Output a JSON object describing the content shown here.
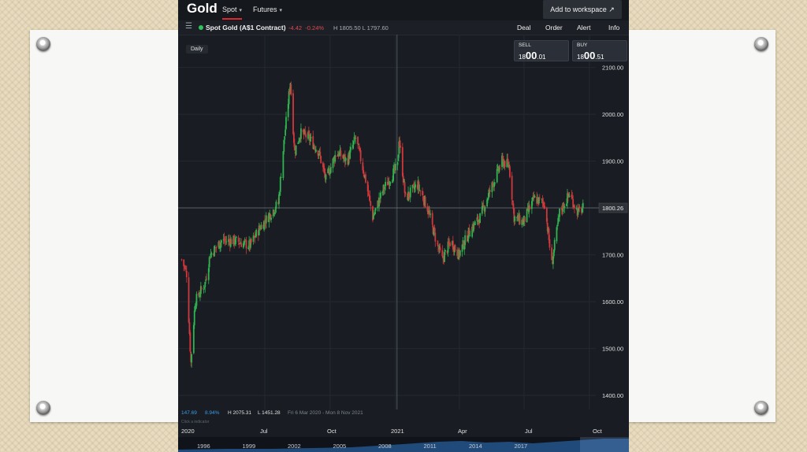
{
  "app": {
    "title": "Gold",
    "tabs": [
      {
        "label": "Spot",
        "caret": "▾"
      },
      {
        "label": "Futures",
        "caret": "▾"
      }
    ],
    "workspace_button": "Add to workspace",
    "workspace_icon": "↗"
  },
  "instrument": {
    "name": "Spot Gold (A$1 Contract)",
    "change": "-4.42",
    "change_pct": "-0.24%",
    "high_low": "H 1805.50  L 1797.60",
    "status_color": "#31c25a"
  },
  "toolbar": [
    "Deal",
    "Order",
    "Alert",
    "Info"
  ],
  "timeframe": "Daily",
  "quotes": {
    "sell": {
      "label": "SELL",
      "big_pre": "18",
      "big": "00",
      "small": ".01"
    },
    "buy": {
      "label": "BUY",
      "big_pre": "18",
      "big": "00",
      "small": ".51"
    }
  },
  "chart_data": {
    "type": "candlestick",
    "y_ticks": [
      "2100.00",
      "2000.00",
      "1900.00",
      "1800.00",
      "1700.00",
      "1600.00",
      "1500.00",
      "1400.00"
    ],
    "ylim": [
      1370,
      2170
    ],
    "current_price": "1800.26",
    "x_ticks": [
      "2020",
      "Jul",
      "Oct",
      "2021",
      "Apr",
      "Jul",
      "Oct"
    ],
    "close_path": [
      [
        "2020-03-06",
        1690
      ],
      [
        "2020-03-13",
        1660
      ],
      [
        "2020-03-19",
        1470
      ],
      [
        "2020-03-25",
        1600
      ],
      [
        "2020-04-08",
        1640
      ],
      [
        "2020-04-15",
        1700
      ],
      [
        "2020-05-01",
        1730
      ],
      [
        "2020-05-20",
        1730
      ],
      [
        "2020-06-10",
        1720
      ],
      [
        "2020-06-25",
        1760
      ],
      [
        "2020-07-10",
        1790
      ],
      [
        "2020-07-20",
        1810
      ],
      [
        "2020-07-28",
        1940
      ],
      [
        "2020-08-06",
        2070
      ],
      [
        "2020-08-12",
        1920
      ],
      [
        "2020-08-20",
        1960
      ],
      [
        "2020-09-01",
        1950
      ],
      [
        "2020-09-15",
        1920
      ],
      [
        "2020-09-25",
        1860
      ],
      [
        "2020-10-10",
        1920
      ],
      [
        "2020-10-25",
        1900
      ],
      [
        "2020-11-06",
        1950
      ],
      [
        "2020-11-20",
        1860
      ],
      [
        "2020-11-30",
        1780
      ],
      [
        "2020-12-15",
        1840
      ],
      [
        "2021-01-04",
        1890
      ],
      [
        "2021-01-06",
        1950
      ],
      [
        "2021-01-15",
        1820
      ],
      [
        "2021-02-01",
        1850
      ],
      [
        "2021-02-15",
        1800
      ],
      [
        "2021-03-01",
        1720
      ],
      [
        "2021-03-08",
        1690
      ],
      [
        "2021-03-20",
        1730
      ],
      [
        "2021-03-31",
        1700
      ],
      [
        "2021-04-15",
        1750
      ],
      [
        "2021-04-30",
        1780
      ],
      [
        "2021-05-15",
        1840
      ],
      [
        "2021-05-31",
        1900
      ],
      [
        "2021-06-10",
        1890
      ],
      [
        "2021-06-17",
        1780
      ],
      [
        "2021-06-30",
        1770
      ],
      [
        "2021-07-15",
        1820
      ],
      [
        "2021-07-30",
        1810
      ],
      [
        "2021-08-09",
        1680
      ],
      [
        "2021-08-20",
        1790
      ],
      [
        "2021-09-03",
        1830
      ],
      [
        "2021-09-15",
        1790
      ],
      [
        "2021-09-22",
        1800
      ]
    ]
  },
  "footer": {
    "stat1": "147.69",
    "stat2": "8.94%",
    "high": "H 2075.31",
    "low": "L 1451.28",
    "range": "Fri 6 Mar 2020 - Mon 8 Nov 2021",
    "hint": "Click a indicator"
  },
  "navigator": {
    "years": [
      "1996",
      "1999",
      "2002",
      "2005",
      "2008",
      "2011",
      "2014",
      "2017"
    ]
  },
  "colors": {
    "up": "#2fb44f",
    "down": "#d0383c",
    "background": "#191d23",
    "grid": "#242931",
    "accent": "#e0282e"
  }
}
